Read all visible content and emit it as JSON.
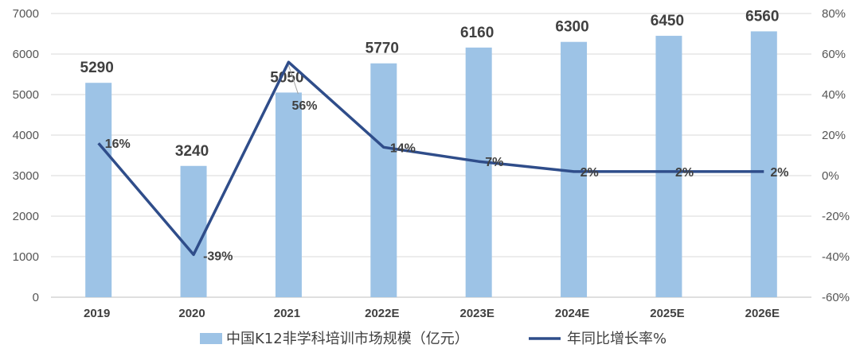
{
  "chart_data": {
    "type": "bar",
    "categories": [
      "2019",
      "2020",
      "2021",
      "2022E",
      "2023E",
      "2024E",
      "2025E",
      "2026E"
    ],
    "series": [
      {
        "name": "中国K12非学科培训市场规模（亿元）",
        "type": "bar",
        "axis": "left",
        "values": [
          5290,
          3240,
          5050,
          5770,
          6160,
          6300,
          6450,
          6560
        ],
        "labels": [
          "5290",
          "3240",
          "5050",
          "5770",
          "6160",
          "6300",
          "6450",
          "6560"
        ]
      },
      {
        "name": "年同比增长率%",
        "type": "line",
        "axis": "right",
        "values": [
          16,
          -39,
          56,
          14,
          7,
          2,
          2,
          2
        ],
        "labels": [
          "16%",
          "-39%",
          "56%",
          "14%",
          "7%",
          "2%",
          "2%",
          "2%"
        ]
      }
    ],
    "y_left": {
      "range": [
        0,
        7000
      ],
      "ticks": [
        0,
        1000,
        2000,
        3000,
        4000,
        5000,
        6000,
        7000
      ],
      "tick_labels": [
        "0",
        "1000",
        "2000",
        "3000",
        "4000",
        "5000",
        "6000",
        "7000"
      ]
    },
    "y_right": {
      "range": [
        -60,
        80
      ],
      "ticks": [
        -60,
        -40,
        -20,
        0,
        20,
        40,
        60,
        80
      ],
      "tick_labels": [
        "-60%",
        "-40%",
        "-20%",
        "0%",
        "20%",
        "40%",
        "60%",
        "80%"
      ]
    },
    "grid": true,
    "legend": "bottom-center",
    "colors": {
      "bar": "#9dc3e6",
      "line": "#2f4d8a",
      "grid": "#d9d9d9"
    }
  }
}
